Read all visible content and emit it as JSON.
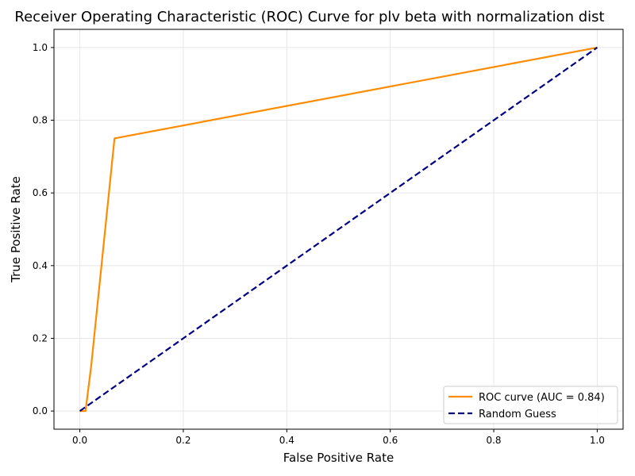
{
  "chart_data": {
    "type": "line",
    "title": "Receiver Operating Characteristic (ROC) Curve for plv beta with normalization dist",
    "xlabel": "False Positive Rate",
    "ylabel": "True Positive Rate",
    "xlim": [
      -0.05,
      1.05
    ],
    "ylim": [
      -0.05,
      1.05
    ],
    "xticks": [
      0.0,
      0.2,
      0.4,
      0.6,
      0.8,
      1.0
    ],
    "yticks": [
      0.0,
      0.2,
      0.4,
      0.6,
      0.8,
      1.0
    ],
    "xtick_labels": [
      "0.0",
      "0.2",
      "0.4",
      "0.6",
      "0.8",
      "1.0"
    ],
    "ytick_labels": [
      "0.0",
      "0.2",
      "0.4",
      "0.6",
      "0.8",
      "1.0"
    ],
    "grid": true,
    "legend_position": "lower-right",
    "series": [
      {
        "name": "ROC curve (AUC = 0.84)",
        "color": "#ff8c00",
        "style": "solid",
        "x": [
          0.0,
          0.011,
          0.022,
          0.067,
          1.0
        ],
        "y": [
          0.0,
          0.0,
          0.125,
          0.75,
          1.0
        ]
      },
      {
        "name": "Random Guess",
        "color": "#000080",
        "style": "dashed",
        "x": [
          0.0,
          1.0
        ],
        "y": [
          0.0,
          1.0
        ]
      }
    ]
  }
}
